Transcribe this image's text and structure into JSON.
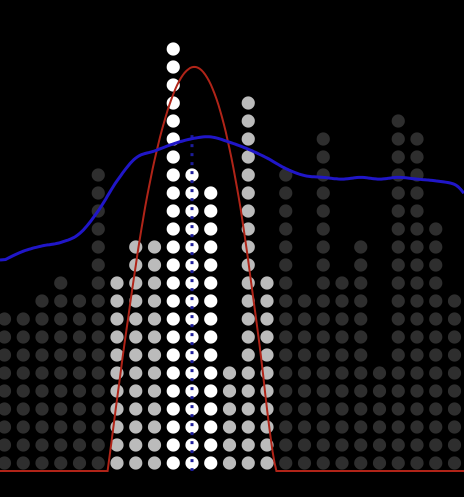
{
  "chart_data": {
    "type": "bar",
    "x": [
      0,
      1,
      2,
      3,
      4,
      5,
      6,
      7,
      8,
      9,
      10,
      11,
      12,
      13,
      14,
      15,
      16,
      17,
      18,
      19,
      20,
      21,
      22,
      23,
      24
    ],
    "values": [
      9,
      9,
      10,
      11,
      10,
      17,
      11,
      13,
      13,
      24,
      17,
      16,
      6,
      21,
      11,
      17,
      10,
      19,
      11,
      13,
      6,
      20,
      19,
      14,
      10
    ],
    "highlight": {
      "index": 10,
      "kind": "dotted-line"
    },
    "ylim": [
      0,
      24
    ],
    "overlays": [
      {
        "kind": "bell-curve",
        "x": [
          5.5,
          6.5,
          7.5,
          8.5,
          9.5,
          10.5,
          11.5,
          12.5,
          13.5,
          14.5,
          15.5
        ],
        "y": [
          0,
          8,
          15,
          19.8,
          22.5,
          22.8,
          20.5,
          15.5,
          8,
          0,
          0
        ],
        "start": 0,
        "end": 24.5
      },
      {
        "kind": "smoothed-line",
        "x": [
          0,
          1,
          2,
          3,
          4,
          5,
          6,
          7,
          8,
          9,
          10,
          11,
          12,
          13,
          14,
          15,
          16,
          17,
          18,
          19,
          20,
          21,
          22,
          23,
          24,
          24.5
        ],
        "y": [
          12,
          12.5,
          12.8,
          13,
          13.5,
          14.8,
          16.5,
          17.8,
          18.2,
          18.6,
          18.9,
          19,
          18.7,
          18.3,
          17.8,
          17.2,
          16.8,
          16.7,
          16.6,
          16.7,
          16.6,
          16.7,
          16.6,
          16.5,
          16.3,
          15.8
        ]
      }
    ],
    "colors": {
      "background": "#000000",
      "highlight_columns": "#ffffff",
      "mid_columns": "#bbbbbb",
      "dim_columns": "#2e2e2e",
      "curve": "#b02418",
      "smoothed": "#2016c8",
      "marker": "#1c1c9a"
    },
    "grid": false,
    "legend": "none"
  }
}
